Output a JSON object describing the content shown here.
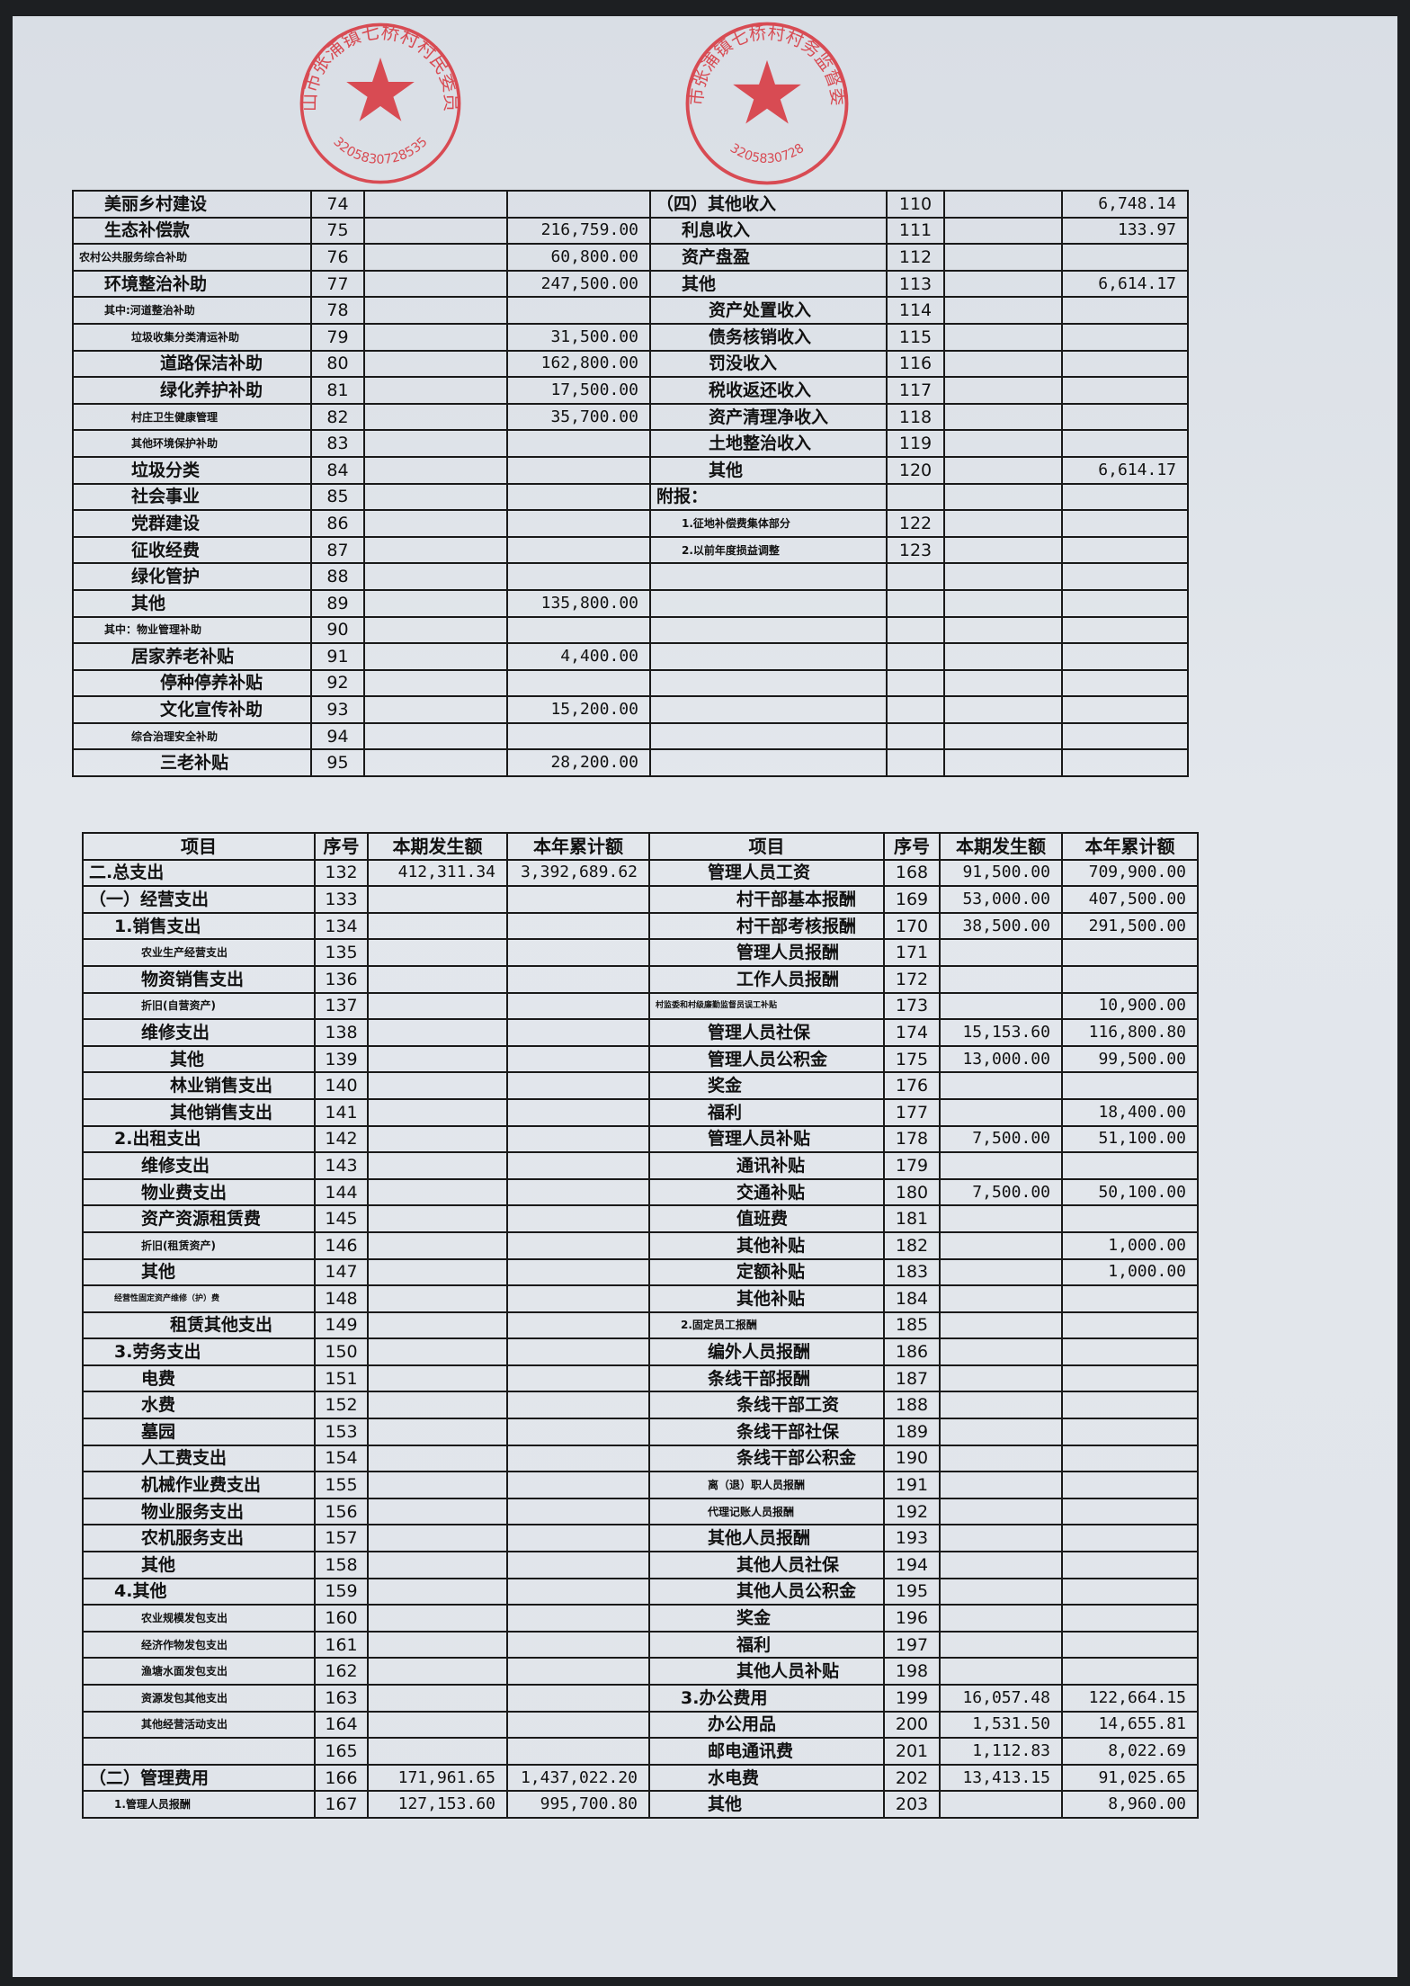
{
  "stamps": {
    "left": {
      "text": "昆山市张浦镇七桥村村民委员会",
      "code": "3205830728535",
      "color": "#d8323a"
    },
    "right": {
      "text": "昆山市张浦镇七桥村村务监督委员会",
      "code": "3205830728",
      "color": "#d8323a"
    }
  },
  "top_table": {
    "left_rows": [
      [
        "美丽乡村建设",
        "74",
        "",
        "",
        1
      ],
      [
        "生态补偿款",
        "75",
        "",
        "216,759.00",
        1
      ],
      [
        "农村公共服务综合补助",
        "76",
        "",
        "60,800.00",
        0
      ],
      [
        "环境整治补助",
        "77",
        "",
        "247,500.00",
        1
      ],
      [
        "其中:河道整治补助",
        "78",
        "",
        "",
        1
      ],
      [
        "垃圾收集分类清运补助",
        "79",
        "",
        "31,500.00",
        2
      ],
      [
        "道路保洁补助",
        "80",
        "",
        "162,800.00",
        3
      ],
      [
        "绿化养护补助",
        "81",
        "",
        "17,500.00",
        3
      ],
      [
        "村庄卫生健康管理",
        "82",
        "",
        "35,700.00",
        2
      ],
      [
        "其他环境保护补助",
        "83",
        "",
        "",
        2
      ],
      [
        "垃圾分类",
        "84",
        "",
        "",
        2
      ],
      [
        "社会事业",
        "85",
        "",
        "",
        2
      ],
      [
        "党群建设",
        "86",
        "",
        "",
        2
      ],
      [
        "征收经费",
        "87",
        "",
        "",
        2
      ],
      [
        "绿化管护",
        "88",
        "",
        "",
        2
      ],
      [
        "其他",
        "89",
        "",
        "135,800.00",
        2
      ],
      [
        "其中：物业管理补助",
        "90",
        "",
        "",
        1
      ],
      [
        "居家养老补贴",
        "91",
        "",
        "4,400.00",
        2
      ],
      [
        "停种停养补贴",
        "92",
        "",
        "",
        3
      ],
      [
        "文化宣传补助",
        "93",
        "",
        "15,200.00",
        3
      ],
      [
        "综合治理安全补助",
        "94",
        "",
        "",
        2
      ],
      [
        "三老补贴",
        "95",
        "",
        "28,200.00",
        3
      ]
    ],
    "right_rows": [
      [
        "（四）其他收入",
        "110",
        "",
        "6,748.14",
        0
      ],
      [
        "利息收入",
        "111",
        "",
        "133.97",
        1
      ],
      [
        "资产盘盈",
        "112",
        "",
        "",
        1
      ],
      [
        "其他",
        "113",
        "",
        "6,614.17",
        1
      ],
      [
        "资产处置收入",
        "114",
        "",
        "",
        2
      ],
      [
        "债务核销收入",
        "115",
        "",
        "",
        2
      ],
      [
        "罚没收入",
        "116",
        "",
        "",
        2
      ],
      [
        "税收返还收入",
        "117",
        "",
        "",
        2
      ],
      [
        "资产清理净收入",
        "118",
        "",
        "",
        2
      ],
      [
        "土地整治收入",
        "119",
        "",
        "",
        2
      ],
      [
        "其他",
        "120",
        "",
        "6,614.17",
        2
      ],
      [
        "附报：",
        "",
        "",
        "",
        0
      ],
      [
        "1.征地补偿费集体部分",
        "122",
        "",
        "",
        1
      ],
      [
        "2.以前年度损益调整",
        "123",
        "",
        "",
        1
      ],
      [
        "",
        "",
        "",
        "",
        0
      ],
      [
        "",
        "",
        "",
        "",
        0
      ],
      [
        "",
        "",
        "",
        "",
        0
      ],
      [
        "",
        "",
        "",
        "",
        0
      ],
      [
        "",
        "",
        "",
        "",
        0
      ],
      [
        "",
        "",
        "",
        "",
        0
      ],
      [
        "",
        "",
        "",
        "",
        0
      ],
      [
        "",
        "",
        "",
        "",
        0
      ]
    ]
  },
  "bottom_table": {
    "headers": [
      "项目",
      "序号",
      "本期发生额",
      "本年累计额",
      "项目",
      "序号",
      "本期发生额",
      "本年累计额"
    ],
    "left_rows": [
      [
        "二.总支出",
        "132",
        "412,311.34",
        "3,392,689.62",
        0
      ],
      [
        "（一）经营支出",
        "133",
        "",
        "",
        0
      ],
      [
        "1.销售支出",
        "134",
        "",
        "",
        1
      ],
      [
        "农业生产经营支出",
        "135",
        "",
        "",
        2
      ],
      [
        "物资销售支出",
        "136",
        "",
        "",
        2
      ],
      [
        "折旧(自营资产)",
        "137",
        "",
        "",
        2
      ],
      [
        "维修支出",
        "138",
        "",
        "",
        2
      ],
      [
        "其他",
        "139",
        "",
        "",
        3
      ],
      [
        "林业销售支出",
        "140",
        "",
        "",
        3
      ],
      [
        "其他销售支出",
        "141",
        "",
        "",
        3
      ],
      [
        "2.出租支出",
        "142",
        "",
        "",
        1
      ],
      [
        "维修支出",
        "143",
        "",
        "",
        2
      ],
      [
        "物业费支出",
        "144",
        "",
        "",
        2
      ],
      [
        "资产资源租赁费",
        "145",
        "",
        "",
        2
      ],
      [
        "折旧(租赁资产)",
        "146",
        "",
        "",
        2
      ],
      [
        "其他",
        "147",
        "",
        "",
        2
      ],
      [
        "经营性固定资产维修（护）费",
        "148",
        "",
        "",
        1
      ],
      [
        "租赁其他支出",
        "149",
        "",
        "",
        3
      ],
      [
        "3.劳务支出",
        "150",
        "",
        "",
        1
      ],
      [
        "电费",
        "151",
        "",
        "",
        2
      ],
      [
        "水费",
        "152",
        "",
        "",
        2
      ],
      [
        "墓园",
        "153",
        "",
        "",
        2
      ],
      [
        "人工费支出",
        "154",
        "",
        "",
        2
      ],
      [
        "机械作业费支出",
        "155",
        "",
        "",
        2
      ],
      [
        "物业服务支出",
        "156",
        "",
        "",
        2
      ],
      [
        "农机服务支出",
        "157",
        "",
        "",
        2
      ],
      [
        "其他",
        "158",
        "",
        "",
        2
      ],
      [
        "4.其他",
        "159",
        "",
        "",
        1
      ],
      [
        "农业规模发包支出",
        "160",
        "",
        "",
        2
      ],
      [
        "经济作物发包支出",
        "161",
        "",
        "",
        2
      ],
      [
        "渔塘水面发包支出",
        "162",
        "",
        "",
        2
      ],
      [
        "资源发包其他支出",
        "163",
        "",
        "",
        2
      ],
      [
        "其他经营活动支出",
        "164",
        "",
        "",
        2
      ],
      [
        "",
        "165",
        "",
        "",
        0
      ],
      [
        "（二）管理费用",
        "166",
        "171,961.65",
        "1,437,022.20",
        0
      ],
      [
        "1.管理人员报酬",
        "167",
        "127,153.60",
        "995,700.80",
        1
      ]
    ],
    "right_rows": [
      [
        "管理人员工资",
        "168",
        "91,500.00",
        "709,900.00",
        2
      ],
      [
        "村干部基本报酬",
        "169",
        "53,000.00",
        "407,500.00",
        3
      ],
      [
        "村干部考核报酬",
        "170",
        "38,500.00",
        "291,500.00",
        3
      ],
      [
        "管理人员报酬",
        "171",
        "",
        "",
        3
      ],
      [
        "工作人员报酬",
        "172",
        "",
        "",
        3
      ],
      [
        "村监委和村级廉勤监督员误工补贴",
        "173",
        "",
        "10,900.00",
        0
      ],
      [
        "管理人员社保",
        "174",
        "15,153.60",
        "116,800.80",
        2
      ],
      [
        "管理人员公积金",
        "175",
        "13,000.00",
        "99,500.00",
        2
      ],
      [
        "奖金",
        "176",
        "",
        "",
        2
      ],
      [
        "福利",
        "177",
        "",
        "18,400.00",
        2
      ],
      [
        "管理人员补贴",
        "178",
        "7,500.00",
        "51,100.00",
        2
      ],
      [
        "通讯补贴",
        "179",
        "",
        "",
        3
      ],
      [
        "交通补贴",
        "180",
        "7,500.00",
        "50,100.00",
        3
      ],
      [
        "值班费",
        "181",
        "",
        "",
        3
      ],
      [
        "其他补贴",
        "182",
        "",
        "1,000.00",
        3
      ],
      [
        "定额补贴",
        "183",
        "",
        "1,000.00",
        3
      ],
      [
        "其他补贴",
        "184",
        "",
        "",
        3
      ],
      [
        "2.固定员工报酬",
        "185",
        "",
        "",
        1
      ],
      [
        "编外人员报酬",
        "186",
        "",
        "",
        2
      ],
      [
        "条线干部报酬",
        "187",
        "",
        "",
        2
      ],
      [
        "条线干部工资",
        "188",
        "",
        "",
        3
      ],
      [
        "条线干部社保",
        "189",
        "",
        "",
        3
      ],
      [
        "条线干部公积金",
        "190",
        "",
        "",
        3
      ],
      [
        "离（退）职人员报酬",
        "191",
        "",
        "",
        2
      ],
      [
        "代理记账人员报酬",
        "192",
        "",
        "",
        2
      ],
      [
        "其他人员报酬",
        "193",
        "",
        "",
        2
      ],
      [
        "其他人员社保",
        "194",
        "",
        "",
        3
      ],
      [
        "其他人员公积金",
        "195",
        "",
        "",
        3
      ],
      [
        "奖金",
        "196",
        "",
        "",
        3
      ],
      [
        "福利",
        "197",
        "",
        "",
        3
      ],
      [
        "其他人员补贴",
        "198",
        "",
        "",
        3
      ],
      [
        "3.办公费用",
        "199",
        "16,057.48",
        "122,664.15",
        1
      ],
      [
        "办公用品",
        "200",
        "1,531.50",
        "14,655.81",
        2
      ],
      [
        "邮电通讯费",
        "201",
        "1,112.83",
        "8,022.69",
        2
      ],
      [
        "水电费",
        "202",
        "13,413.15",
        "91,025.65",
        2
      ],
      [
        "其他",
        "203",
        "",
        "8,960.00",
        2
      ]
    ]
  }
}
